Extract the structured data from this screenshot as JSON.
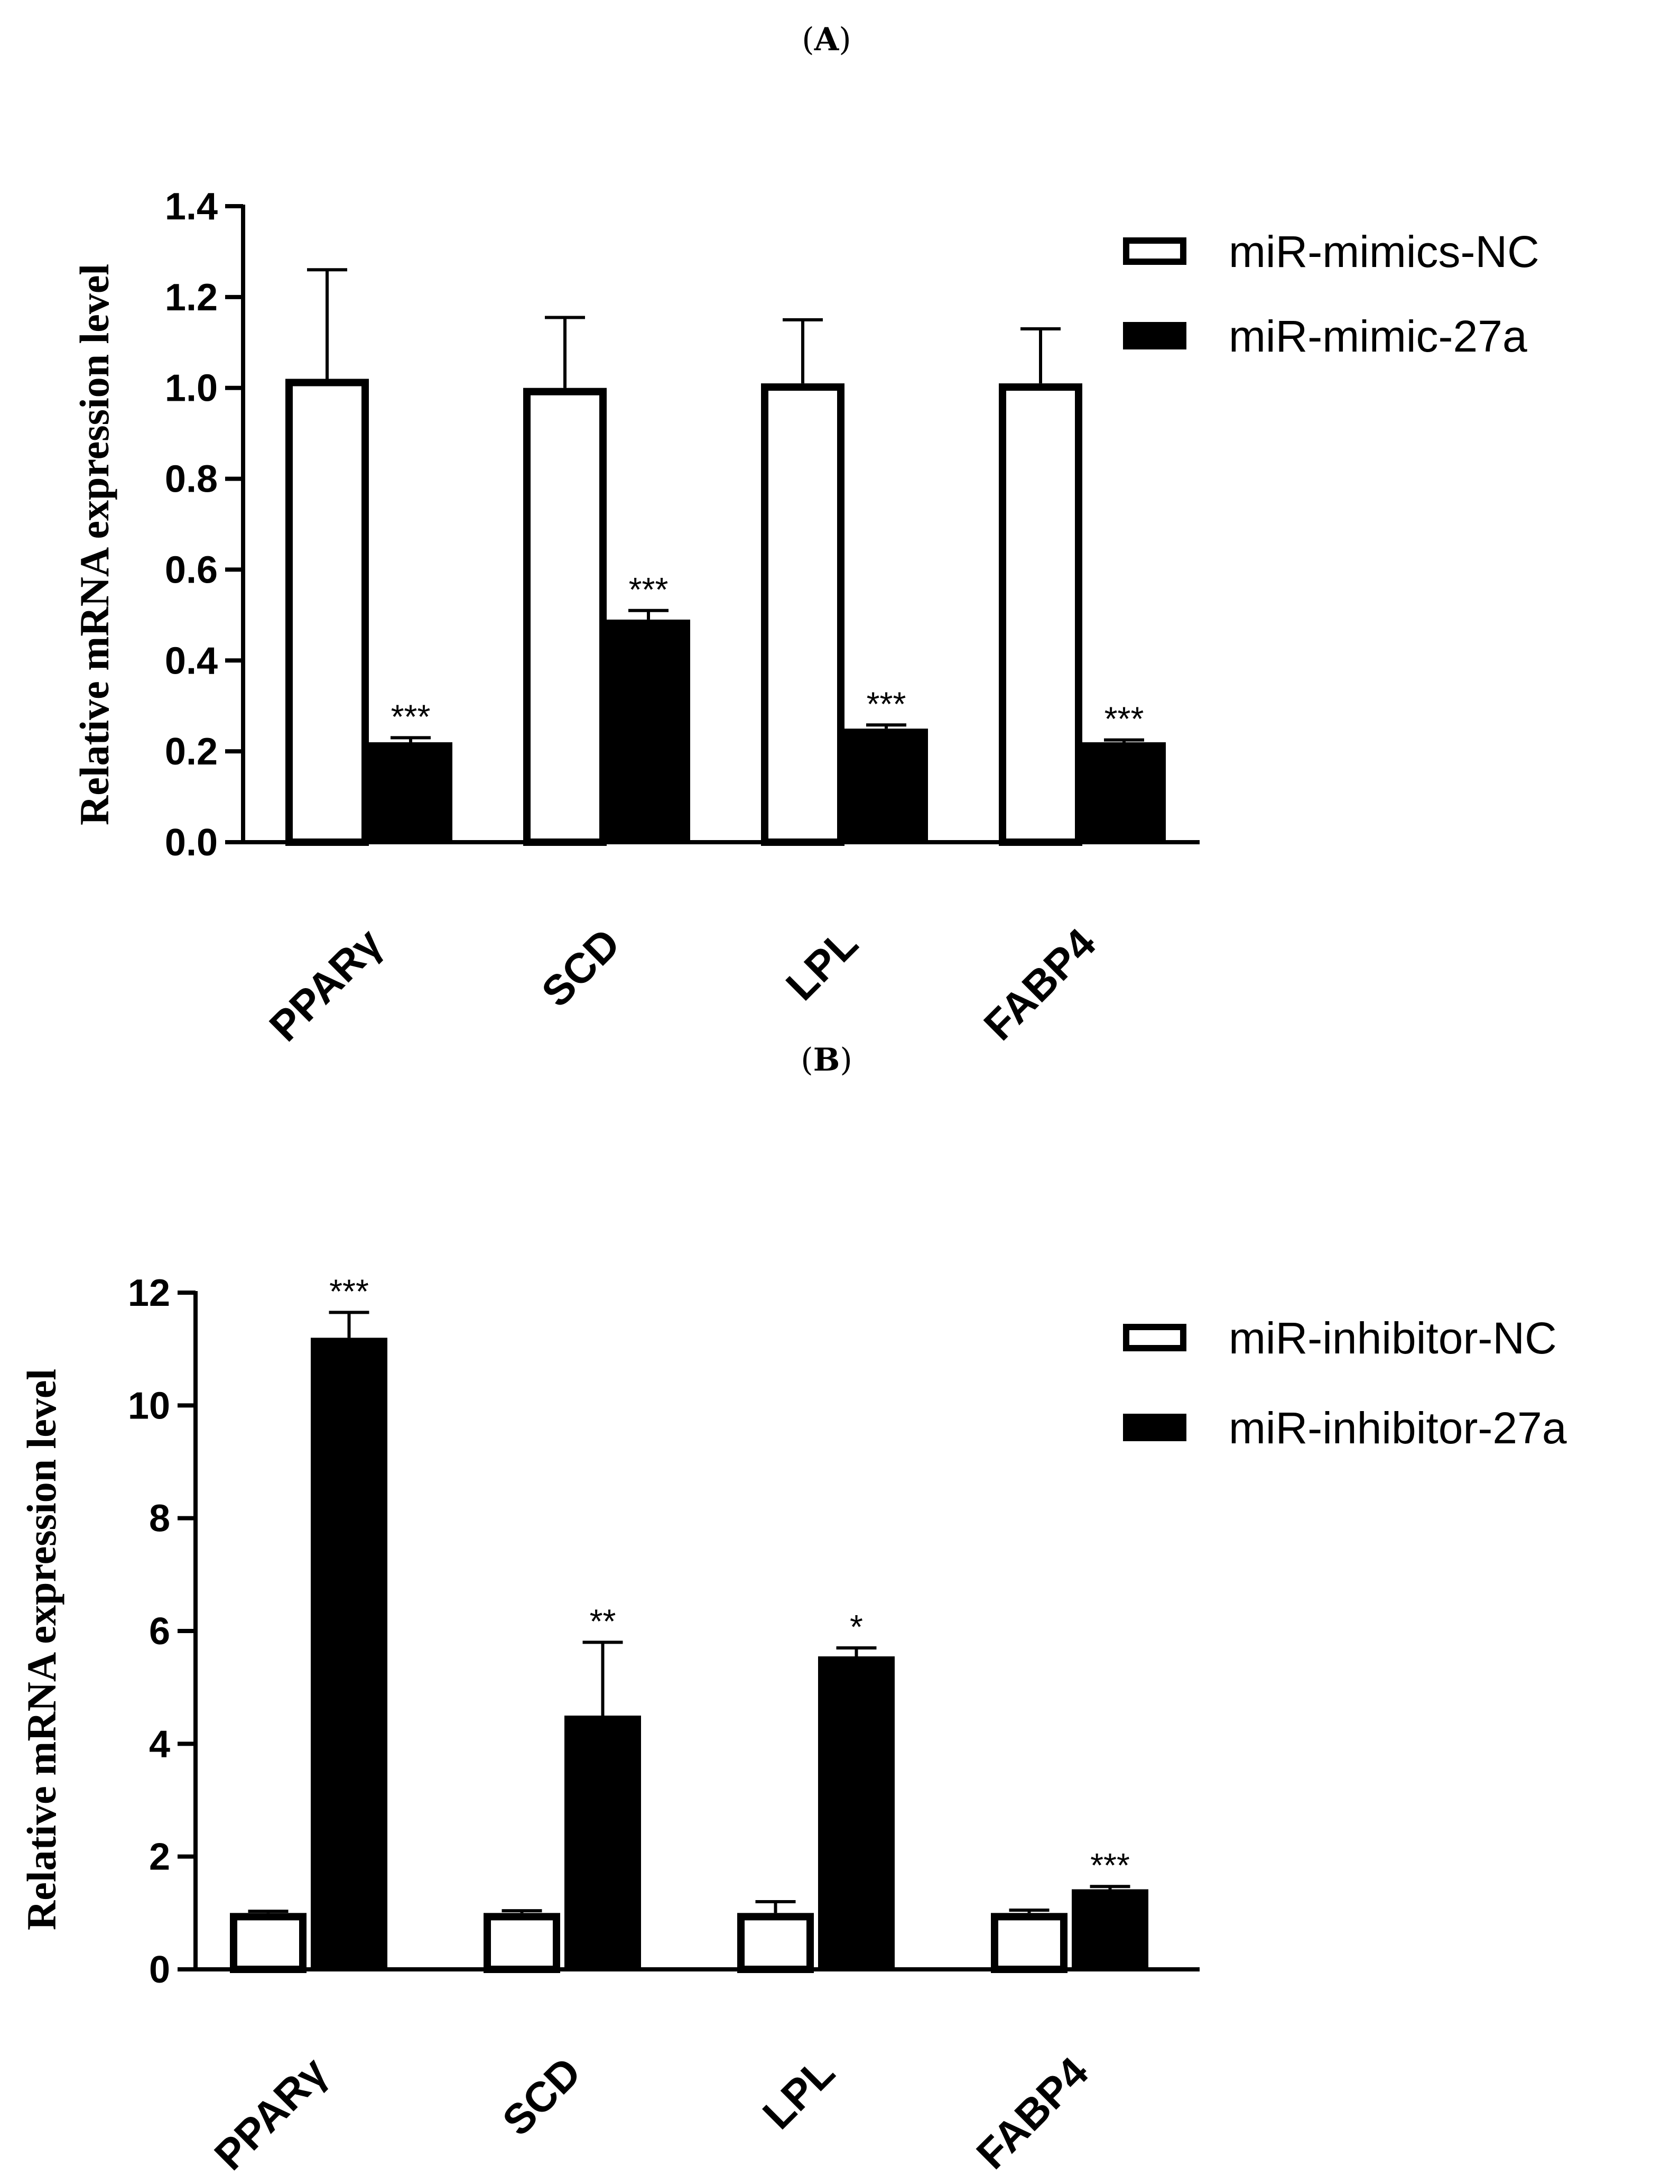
{
  "chart_data": [
    {
      "type": "bar",
      "panel_label": "(A)",
      "panel_letter": "A",
      "title": "",
      "xlabel": "",
      "ylabel": "Relative mRNA expression level",
      "ylim": [
        0,
        1.4
      ],
      "yticks": [
        0.0,
        0.2,
        0.4,
        0.6,
        0.8,
        1.0,
        1.2,
        1.4
      ],
      "ytick_labels": [
        "0.0",
        "0.2",
        "0.4",
        "0.6",
        "0.8",
        "1.0",
        "1.2",
        "1.4"
      ],
      "categories": [
        "PPARγ",
        "SCD",
        "LPL",
        "FABP4"
      ],
      "legend_position": "top-right",
      "series": [
        {
          "name": "miR-mimics-NC",
          "fill": "#ffffff",
          "values": [
            1.02,
            1.0,
            1.01,
            1.01
          ],
          "errors": [
            0.24,
            0.155,
            0.14,
            0.12
          ],
          "significance": [
            "",
            "",
            "",
            ""
          ]
        },
        {
          "name": "miR-mimic-27a",
          "fill": "#000000",
          "values": [
            0.22,
            0.49,
            0.25,
            0.22
          ],
          "errors": [
            0.01,
            0.02,
            0.008,
            0.005
          ],
          "significance": [
            "***",
            "***",
            "***",
            "***"
          ]
        }
      ]
    },
    {
      "type": "bar",
      "panel_label": "(B)",
      "panel_letter": "B",
      "title": "",
      "xlabel": "",
      "ylabel": "Relative mRNA expression level",
      "ylim": [
        0,
        12
      ],
      "yticks": [
        0,
        2,
        4,
        6,
        8,
        10,
        12
      ],
      "ytick_labels": [
        "0",
        "2",
        "4",
        "6",
        "8",
        "10",
        "12"
      ],
      "categories": [
        "PPARγ",
        "SCD",
        "LPL",
        "FABP4"
      ],
      "legend_position": "top-right",
      "series": [
        {
          "name": "miR-inhibitor-NC",
          "fill": "#ffffff",
          "values": [
            1.0,
            1.0,
            1.0,
            1.0
          ],
          "errors": [
            0.03,
            0.04,
            0.2,
            0.05
          ],
          "significance": [
            "",
            "",
            "",
            ""
          ]
        },
        {
          "name": "miR-inhibitor-27a",
          "fill": "#000000",
          "values": [
            11.2,
            4.5,
            5.55,
            1.42
          ],
          "errors": [
            0.45,
            1.3,
            0.15,
            0.05
          ],
          "significance": [
            "***",
            "**",
            "*",
            "***"
          ]
        }
      ]
    }
  ]
}
